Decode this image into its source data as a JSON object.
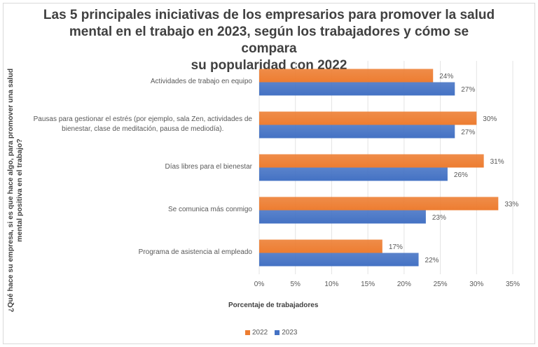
{
  "chart_data": {
    "type": "bar",
    "orientation": "horizontal",
    "title": "Las 5 principales iniciativas de los empresarios para promover la salud mental en el trabajo en 2023, según los trabajadores y cómo se compara su popularidad con 2022",
    "title_lines": [
      "Las 5 principales iniciativas de los empresarios para promover la salud",
      "mental en el trabajo en 2023, según los trabajadores y cómo se compara",
      "su popularidad con 2022"
    ],
    "ylabel": "¿Qué hace su empresa, si es que hace algo, para promover una salud mental positiva en el trabajo?",
    "ylabel_lines": [
      "¿Qué hace su empresa, si es que hace algo, para promover una salud",
      "mental positiva en el trabajo?"
    ],
    "xlabel": "Porcentaje de trabajadores",
    "categories": [
      "Actividades de trabajo en equipo",
      "Pausas para gestionar el estrés (por ejemplo, sala Zen, actividades de bienestar, clase de meditación, pausa de mediodía).",
      "Días libres para el bienestar",
      "Se comunica más conmigo",
      "Programa de asistencia al empleado"
    ],
    "category_label_lines": [
      [
        "Actividades de trabajo en equipo"
      ],
      [
        "Pausas para gestionar el estrés (por ejemplo, sala Zen, actividades de",
        "bienestar, clase de meditación, pausa de mediodía)."
      ],
      [
        "Días libres para el bienestar"
      ],
      [
        "Se comunica más conmigo"
      ],
      [
        "Programa de asistencia al empleado"
      ]
    ],
    "series": [
      {
        "name": "2022",
        "color": "#ed7d31",
        "values": [
          24,
          30,
          31,
          33,
          17
        ]
      },
      {
        "name": "2023",
        "color": "#4472c4",
        "values": [
          27,
          27,
          26,
          23,
          22
        ]
      }
    ],
    "data_label_suffix": "%",
    "xlim": [
      0,
      35
    ],
    "xticks": [
      0,
      5,
      10,
      15,
      20,
      25,
      30,
      35
    ],
    "xtick_labels": [
      "0%",
      "5%",
      "10%",
      "15%",
      "20%",
      "25%",
      "30%",
      "35%"
    ],
    "grid": true,
    "legend_position": "bottom"
  }
}
